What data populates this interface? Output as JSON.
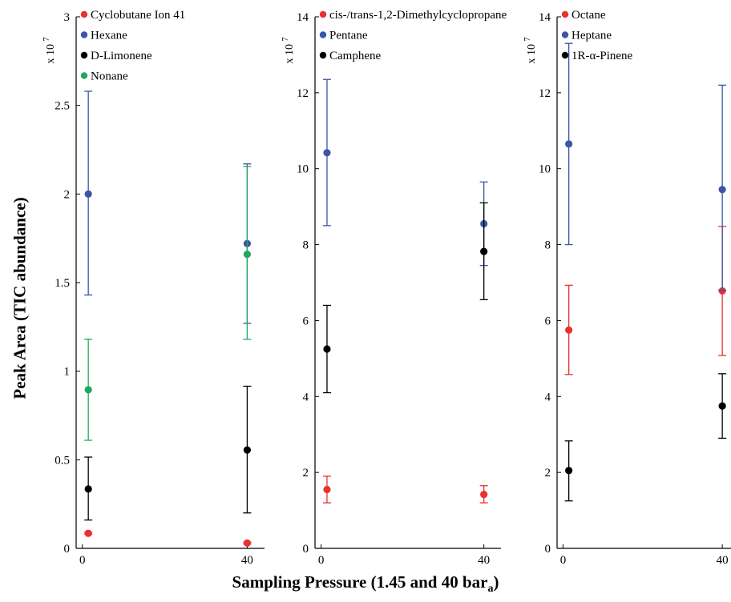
{
  "axis_titles": {
    "y": "Peak Area (TIC abundance)",
    "x": "Sampling Pressure (1.45 and 40 bar",
    "x_subscript": "a",
    "x_suffix": ")"
  },
  "chart_data": [
    {
      "type": "scatter",
      "title": "",
      "x_ticks": [
        0,
        40
      ],
      "y_ticks": [
        0,
        0.5,
        1,
        1.5,
        2,
        2.5,
        3
      ],
      "ylim": [
        0,
        3
      ],
      "multiplier": "x 10",
      "multiplier_exp": "7",
      "grid": false,
      "legend": "top-left",
      "series": [
        {
          "name": "Cyclobutane Ion  41",
          "color": "#e8322e",
          "x": [
            1.45,
            40
          ],
          "y": [
            0.085,
            0.03
          ],
          "err_low": [
            0.08,
            0.025
          ],
          "err_high": [
            0.09,
            0.035
          ]
        },
        {
          "name": "Hexane",
          "color": "#3c55a5",
          "x": [
            1.45,
            40
          ],
          "y": [
            2.0,
            1.72
          ],
          "err_low": [
            1.43,
            1.27
          ],
          "err_high": [
            2.58,
            2.17
          ]
        },
        {
          "name": "D-Limonene",
          "color": "#000000",
          "x": [
            1.45,
            40
          ],
          "y": [
            0.335,
            0.555
          ],
          "err_low": [
            0.16,
            0.2
          ],
          "err_high": [
            0.515,
            0.915
          ]
        },
        {
          "name": "Nonane",
          "color": "#1fa861",
          "x": [
            1.45,
            40
          ],
          "y": [
            0.895,
            1.66
          ],
          "err_low": [
            0.61,
            1.18
          ],
          "err_high": [
            1.18,
            2.155
          ]
        }
      ]
    },
    {
      "type": "scatter",
      "title": "",
      "x_ticks": [
        0,
        40
      ],
      "y_ticks": [
        0,
        2,
        4,
        6,
        8,
        10,
        12,
        14
      ],
      "ylim": [
        0,
        14
      ],
      "multiplier": "x 10",
      "multiplier_exp": "7",
      "grid": false,
      "legend": "top-left",
      "series": [
        {
          "name": "cis-/trans-1,2-Dimethylcyclopropane",
          "color": "#e8322e",
          "x": [
            1.45,
            40
          ],
          "y": [
            1.55,
            1.42
          ],
          "err_low": [
            1.2,
            1.2
          ],
          "err_high": [
            1.9,
            1.65
          ]
        },
        {
          "name": "Pentane",
          "color": "#3c55a5",
          "x": [
            1.45,
            40
          ],
          "y": [
            10.42,
            8.55
          ],
          "err_low": [
            8.5,
            7.45
          ],
          "err_high": [
            12.35,
            9.65
          ]
        },
        {
          "name": "Camphene",
          "color": "#000000",
          "x": [
            1.45,
            40
          ],
          "y": [
            5.25,
            7.82
          ],
          "err_low": [
            4.1,
            6.55
          ],
          "err_high": [
            6.4,
            9.1
          ]
        }
      ]
    },
    {
      "type": "scatter",
      "title": "",
      "x_ticks": [
        0,
        40
      ],
      "y_ticks": [
        0,
        2,
        4,
        6,
        8,
        10,
        12,
        14
      ],
      "ylim": [
        0,
        14
      ],
      "multiplier": "x 10",
      "multiplier_exp": "7",
      "grid": false,
      "legend": "top-left",
      "series": [
        {
          "name": "Octane",
          "color": "#e8322e",
          "x": [
            1.45,
            40
          ],
          "y": [
            5.75,
            6.78
          ],
          "err_low": [
            4.58,
            5.08
          ],
          "err_high": [
            6.93,
            8.48
          ]
        },
        {
          "name": "Heptane",
          "color": "#3c55a5",
          "x": [
            1.45,
            40
          ],
          "y": [
            10.65,
            9.45
          ],
          "err_low": [
            8.0,
            6.8
          ],
          "err_high": [
            13.3,
            12.2
          ]
        },
        {
          "name": "1R-α-Pinene",
          "color": "#000000",
          "x": [
            1.45,
            40
          ],
          "y": [
            2.05,
            3.75
          ],
          "err_low": [
            1.25,
            2.9
          ],
          "err_high": [
            2.83,
            4.6
          ]
        }
      ]
    }
  ]
}
